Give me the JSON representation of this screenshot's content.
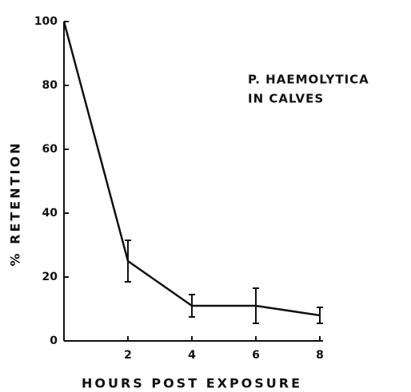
{
  "chart_data": {
    "type": "line",
    "annotation": [
      "P. HAEMOLYTICA",
      "IN CALVES"
    ],
    "x_label": "HOURS POST EXPOSURE",
    "y_label": "% RETENTION",
    "x": [
      0,
      2,
      4,
      6,
      8
    ],
    "series": [
      {
        "color": "#111111",
        "values": [
          100,
          25,
          11,
          11,
          8
        ],
        "errors": [
          null,
          6.5,
          3.5,
          5.5,
          2.5
        ]
      }
    ],
    "xlim": [
      0,
      8.1
    ],
    "xticks": [
      2,
      4,
      6,
      8
    ],
    "ylim": [
      0,
      100
    ],
    "yticks": [
      0,
      20,
      40,
      60,
      80,
      100
    ]
  }
}
